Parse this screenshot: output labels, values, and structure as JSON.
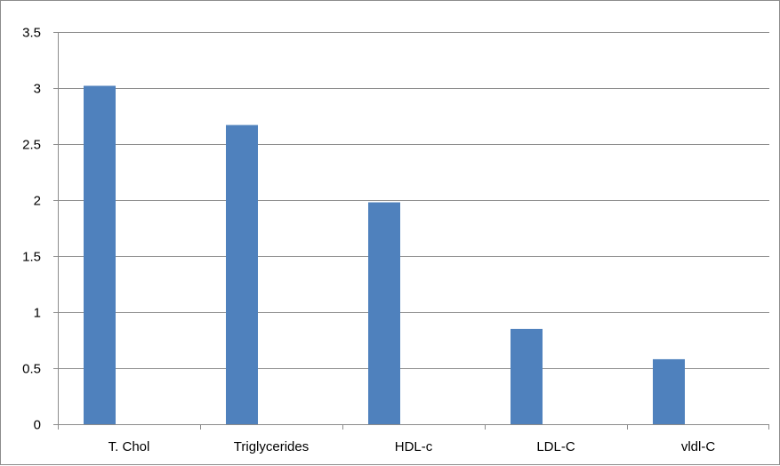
{
  "chart_data": {
    "type": "bar",
    "title": "",
    "xlabel": "",
    "ylabel": "",
    "categories": [
      "T. Chol",
      "Triglycerides",
      "HDL-c",
      "LDL-C",
      "vldl-C"
    ],
    "series": [
      {
        "values": [
          3.02,
          2.67,
          1.98,
          0.85,
          0.58
        ]
      }
    ],
    "ylim": [
      0,
      3.5
    ],
    "yticks": [
      "0",
      "0.5",
      "1",
      "1.5",
      "2",
      "2.5",
      "3",
      "3.5"
    ],
    "ytick_values": [
      0,
      0.5,
      1,
      1.5,
      2,
      2.5,
      3,
      3.5
    ],
    "grid": true,
    "legend": "none",
    "colors": {
      "bar": "#4f81bd",
      "grid": "#8c8c8c",
      "axis": "#8c8c8c",
      "text": "#000000"
    }
  }
}
